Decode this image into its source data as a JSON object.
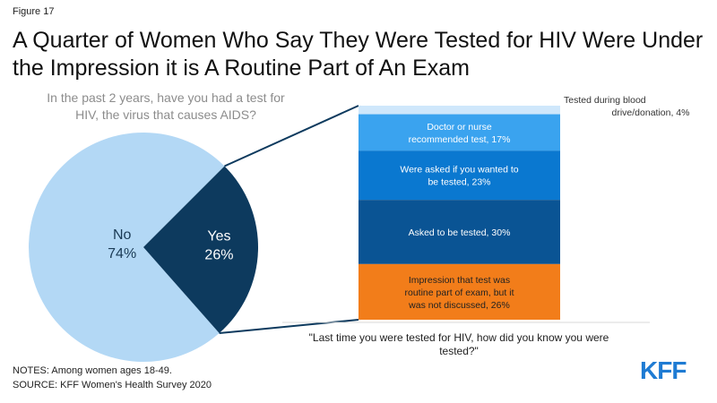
{
  "figure_label": "Figure 17",
  "title": "A Quarter of Women Who Say They Were Tested for HIV Were Under the Impression it is A Routine Part of An Exam",
  "chart_data": [
    {
      "type": "pie",
      "question": "In the past 2 years, have you had a test for HIV, the virus that causes AIDS?",
      "categories": [
        "No",
        "Yes"
      ],
      "values": [
        74,
        26
      ],
      "labels": [
        "74%",
        "26%"
      ],
      "colors": [
        "#b3d8f5",
        "#0d3a5e"
      ],
      "text_colors": [
        "#1a3a55",
        "#ffffff"
      ]
    },
    {
      "type": "bar",
      "stacked": true,
      "question": "\"Last time you were tested for HIV, how did you know you were tested?\"",
      "segments": [
        {
          "line1": "Tested during blood",
          "line2": "drive/donation, 4%",
          "value": 4,
          "color": "#cfe7fb",
          "text_color": "#333333",
          "label_outside": true
        },
        {
          "line1": "Doctor or nurse",
          "line2": "recommended test, 17%",
          "value": 17,
          "color": "#3aa3ef",
          "text_color": "#ffffff"
        },
        {
          "line1": "Were asked if you wanted to",
          "line2": "be tested, 23%",
          "value": 23,
          "color": "#0a78d0",
          "text_color": "#ffffff"
        },
        {
          "line1": "Asked to be tested, 30%",
          "line2": "",
          "value": 30,
          "color": "#0a5494",
          "text_color": "#ffffff"
        },
        {
          "line1": "Impression that test was",
          "line2": "routine part of exam, but it",
          "line3": "was not discussed, 26%",
          "value": 26,
          "color": "#f27d1a",
          "text_color": "#222222"
        }
      ]
    }
  ],
  "notes": "NOTES: Among women ages 18-49.",
  "source": "SOURCE: KFF Women's Health Survey 2020",
  "logo": "KFF",
  "colors": {
    "connector": "#0d3a5e",
    "title": "#111111",
    "question": "#8c8c8c"
  }
}
